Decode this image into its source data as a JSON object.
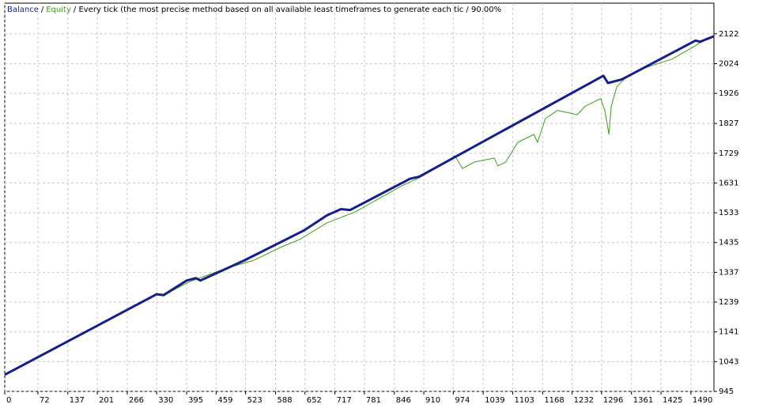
{
  "chart_data": {
    "type": "line",
    "legend_separator": "/",
    "subtitle": "/ Every tick (the most precise method based on all available least timeframes to generate each tic / 90.00%",
    "xlim": [
      0,
      1540
    ],
    "ylim": [
      945,
      2223
    ],
    "xticks": [
      0,
      72,
      137,
      201,
      266,
      330,
      395,
      459,
      523,
      588,
      652,
      717,
      781,
      846,
      910,
      974,
      1039,
      1103,
      1168,
      1232,
      1296,
      1361,
      1425,
      1490
    ],
    "yticks": [
      945,
      1043,
      1141,
      1239,
      1337,
      1435,
      1533,
      1631,
      1729,
      1827,
      1926,
      2024,
      2122
    ],
    "grid": true,
    "series": [
      {
        "name": "Balance",
        "color": "#141e8c",
        "width": 3,
        "x": [
          0,
          330,
          345,
          395,
          415,
          425,
          520,
          650,
          700,
          730,
          750,
          880,
          900,
          1300,
          1310,
          1340,
          1500,
          1510,
          1540
        ],
        "values": [
          1000,
          1265,
          1262,
          1310,
          1318,
          1310,
          1376,
          1475,
          1525,
          1545,
          1542,
          1645,
          1652,
          1984,
          1960,
          1972,
          2100,
          2096,
          2114
        ]
      },
      {
        "name": "Equity",
        "color": "#3c9c1c",
        "width": 1,
        "x": [
          0,
          330,
          345,
          400,
          480,
          540,
          600,
          640,
          700,
          760,
          860,
          900,
          960,
          977,
          994,
          1020,
          1063,
          1071,
          1088,
          1114,
          1149,
          1157,
          1174,
          1200,
          1243,
          1260,
          1294,
          1303,
          1312,
          1317,
          1329,
          1346,
          1380,
          1449,
          1500,
          1526,
          1540
        ],
        "values": [
          1000,
          1265,
          1262,
          1305,
          1350,
          1376,
          1420,
          1445,
          1500,
          1535,
          1620,
          1648,
          1700,
          1721,
          1679,
          1700,
          1713,
          1687,
          1700,
          1765,
          1791,
          1765,
          1843,
          1870,
          1856,
          1883,
          1909,
          1870,
          1791,
          1883,
          1948,
          1974,
          2005,
          2039,
          2083,
          2109,
          2114
        ]
      }
    ]
  }
}
